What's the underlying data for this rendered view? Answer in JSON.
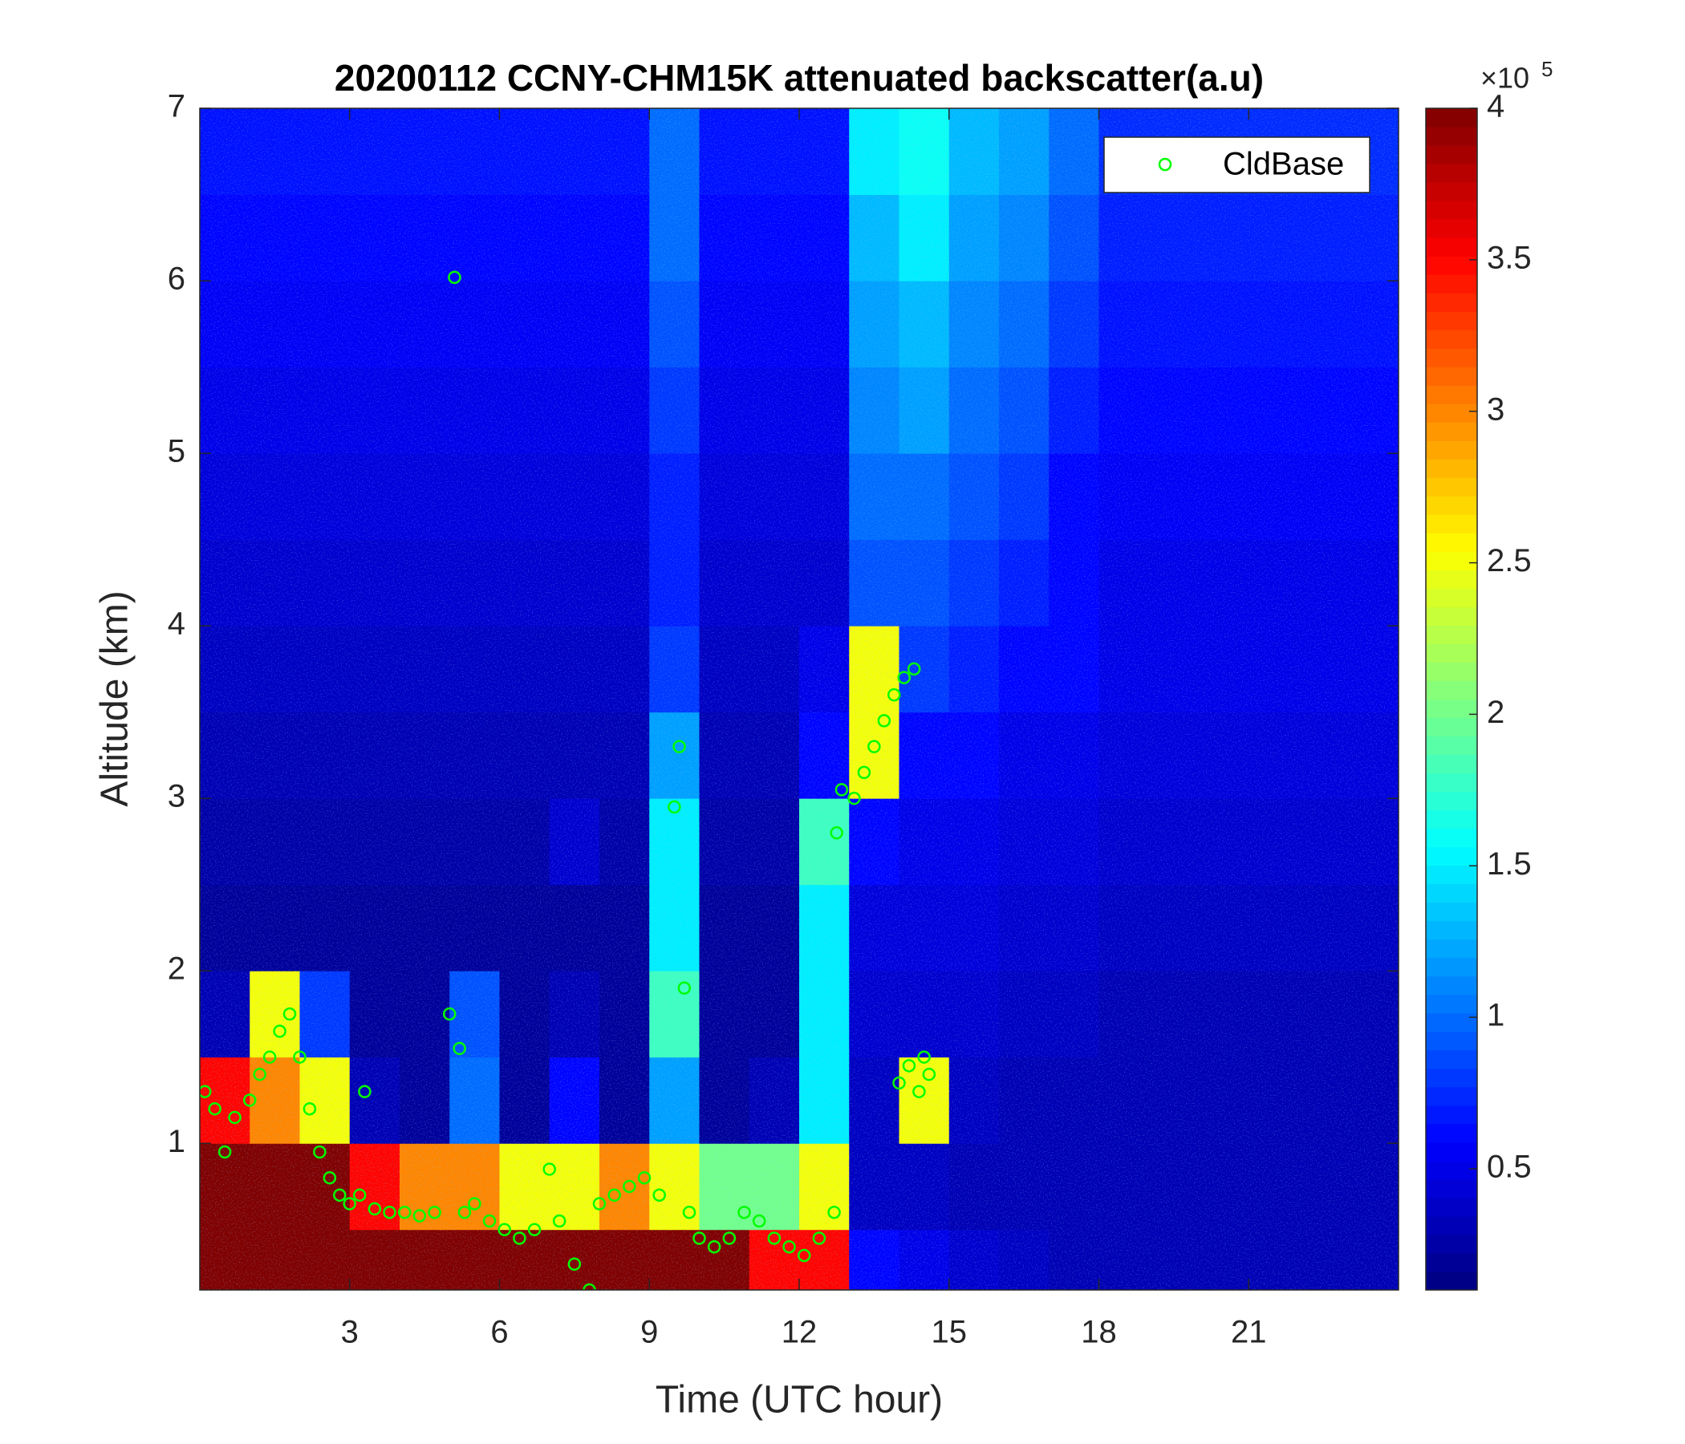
{
  "chart_data": {
    "type": "heatmap",
    "title": "20200112 CCNY-CHM15K attenuated backscatter(a.u)",
    "xlabel": "Time (UTC hour)",
    "ylabel": "Altitude (km)",
    "xlim": [
      0,
      24
    ],
    "ylim": [
      0.15,
      7
    ],
    "xticks": [
      3,
      6,
      9,
      12,
      15,
      18,
      21
    ],
    "yticks": [
      1,
      2,
      3,
      4,
      5,
      6,
      7
    ],
    "colormap": "jet",
    "clim": [
      0.1,
      4
    ],
    "cticks": [
      0.5,
      1,
      1.5,
      2,
      2.5,
      3,
      3.5,
      4
    ],
    "clabel_base": "×10",
    "clabel_power": "5",
    "x_edges": [
      0,
      1,
      2,
      3,
      4,
      5,
      6,
      7,
      8,
      9,
      10,
      11,
      12,
      13,
      14,
      15,
      16,
      17,
      18,
      19,
      20,
      21,
      22,
      23,
      24
    ],
    "y_edges": [
      0.15,
      0.5,
      1,
      1.5,
      2,
      2.5,
      3,
      3.5,
      4,
      4.5,
      5,
      5.5,
      6,
      6.5,
      7
    ],
    "z": [
      [
        4,
        4,
        4,
        4,
        4,
        4,
        4,
        4,
        4,
        4,
        4,
        3.5,
        3.5,
        0.6,
        0.5,
        0.4,
        0.35,
        0.3,
        0.3,
        0.3,
        0.3,
        0.3,
        0.3,
        0.3
      ],
      [
        4,
        4,
        4,
        3.5,
        3,
        3,
        2.5,
        2.5,
        3,
        2.5,
        2,
        2,
        2.5,
        0.35,
        0.35,
        0.3,
        0.3,
        0.3,
        0.3,
        0.3,
        0.3,
        0.3,
        0.3,
        0.3
      ],
      [
        3.5,
        3,
        2.5,
        0.3,
        0.2,
        1,
        0.2,
        0.6,
        0.2,
        1.2,
        0.2,
        0.3,
        1.5,
        0.35,
        2.5,
        0.35,
        0.3,
        0.3,
        0.3,
        0.3,
        0.3,
        0.3,
        0.3,
        0.3
      ],
      [
        0.3,
        2.5,
        0.8,
        0.2,
        0.2,
        0.9,
        0.2,
        0.3,
        0.2,
        1.8,
        0.2,
        0.2,
        1.5,
        0.4,
        0.4,
        0.4,
        0.35,
        0.35,
        0.3,
        0.3,
        0.3,
        0.3,
        0.3,
        0.3
      ],
      [
        0.2,
        0.2,
        0.2,
        0.2,
        0.2,
        0.2,
        0.2,
        0.2,
        0.2,
        1.5,
        0.2,
        0.2,
        1.5,
        0.45,
        0.45,
        0.45,
        0.4,
        0.4,
        0.35,
        0.35,
        0.35,
        0.35,
        0.35,
        0.35
      ],
      [
        0.25,
        0.25,
        0.25,
        0.25,
        0.25,
        0.25,
        0.25,
        0.4,
        0.25,
        1.5,
        0.25,
        0.25,
        1.8,
        0.6,
        0.5,
        0.5,
        0.45,
        0.45,
        0.4,
        0.4,
        0.4,
        0.4,
        0.4,
        0.4
      ],
      [
        0.3,
        0.3,
        0.3,
        0.3,
        0.3,
        0.3,
        0.3,
        0.3,
        0.3,
        1.2,
        0.3,
        0.3,
        0.6,
        2.5,
        0.6,
        0.6,
        0.5,
        0.5,
        0.45,
        0.45,
        0.45,
        0.45,
        0.45,
        0.45
      ],
      [
        0.35,
        0.35,
        0.35,
        0.35,
        0.35,
        0.35,
        0.35,
        0.35,
        0.35,
        0.8,
        0.35,
        0.35,
        0.5,
        2.5,
        0.8,
        0.7,
        0.6,
        0.6,
        0.5,
        0.5,
        0.5,
        0.5,
        0.5,
        0.5
      ],
      [
        0.4,
        0.4,
        0.4,
        0.4,
        0.4,
        0.4,
        0.4,
        0.4,
        0.4,
        0.7,
        0.4,
        0.4,
        0.4,
        0.9,
        0.9,
        0.8,
        0.7,
        0.6,
        0.5,
        0.5,
        0.5,
        0.5,
        0.5,
        0.5
      ],
      [
        0.45,
        0.45,
        0.45,
        0.45,
        0.45,
        0.45,
        0.45,
        0.45,
        0.45,
        0.7,
        0.45,
        0.45,
        0.45,
        1,
        1,
        0.9,
        0.8,
        0.6,
        0.55,
        0.55,
        0.55,
        0.55,
        0.55,
        0.55
      ],
      [
        0.5,
        0.5,
        0.5,
        0.5,
        0.5,
        0.5,
        0.5,
        0.5,
        0.5,
        0.8,
        0.5,
        0.5,
        0.5,
        1.1,
        1.2,
        1,
        0.9,
        0.7,
        0.6,
        0.6,
        0.6,
        0.6,
        0.6,
        0.6
      ],
      [
        0.55,
        0.55,
        0.55,
        0.55,
        0.55,
        0.55,
        0.55,
        0.55,
        0.55,
        0.9,
        0.55,
        0.55,
        0.55,
        1.2,
        1.3,
        1.1,
        1,
        0.8,
        0.65,
        0.65,
        0.65,
        0.65,
        0.65,
        0.65
      ],
      [
        0.6,
        0.6,
        0.6,
        0.6,
        0.6,
        0.6,
        0.6,
        0.6,
        0.6,
        1,
        0.6,
        0.6,
        0.6,
        1.3,
        1.5,
        1.2,
        1.1,
        0.9,
        0.7,
        0.7,
        0.7,
        0.7,
        0.7,
        0.7
      ],
      [
        0.65,
        0.65,
        0.65,
        0.65,
        0.65,
        0.65,
        0.65,
        0.65,
        0.65,
        1,
        0.65,
        0.65,
        0.65,
        1.5,
        1.6,
        1.3,
        1.2,
        1,
        0.75,
        0.75,
        0.75,
        0.75,
        0.75,
        0.75
      ]
    ],
    "legend": "northeast",
    "series": [
      {
        "name": "CldBase",
        "type": "scatter",
        "color": "#00ff00",
        "x": [
          0.1,
          0.3,
          0.5,
          0.7,
          1,
          1.2,
          1.4,
          1.6,
          1.8,
          2,
          2.2,
          2.4,
          2.6,
          2.8,
          3,
          3.2,
          3.3,
          3.5,
          3.8,
          4.1,
          4.4,
          4.7,
          5,
          5.1,
          5.2,
          5.3,
          5.5,
          5.8,
          6.1,
          6.4,
          6.7,
          7,
          7.2,
          7.5,
          7.8,
          8,
          8.3,
          8.6,
          8.9,
          9.2,
          9.5,
          9.6,
          9.7,
          9.8,
          10,
          10.3,
          10.6,
          10.9,
          11.2,
          11.5,
          11.8,
          12.1,
          12.4,
          12.7,
          12.75,
          12.85,
          13.1,
          13.3,
          13.5,
          13.7,
          13.9,
          14.1,
          14.3,
          14,
          14.2,
          14.4,
          14.6,
          14.5
        ],
        "values": [
          1.3,
          1.2,
          0.95,
          1.15,
          1.25,
          1.4,
          1.5,
          1.65,
          1.75,
          1.5,
          1.2,
          0.95,
          0.8,
          0.7,
          0.65,
          0.7,
          1.3,
          0.62,
          0.6,
          0.6,
          0.58,
          0.6,
          1.75,
          6.02,
          1.55,
          0.6,
          0.65,
          0.55,
          0.5,
          0.45,
          0.5,
          0.85,
          0.55,
          0.3,
          0.15,
          0.65,
          0.7,
          0.75,
          0.8,
          0.7,
          2.95,
          3.3,
          1.9,
          0.6,
          0.45,
          0.4,
          0.45,
          0.6,
          0.55,
          0.45,
          0.4,
          0.35,
          0.45,
          0.6,
          2.8,
          3.05,
          3,
          3.15,
          3.3,
          3.45,
          3.6,
          3.7,
          3.75,
          1.35,
          1.45,
          1.3,
          1.4,
          1.5
        ]
      }
    ]
  }
}
